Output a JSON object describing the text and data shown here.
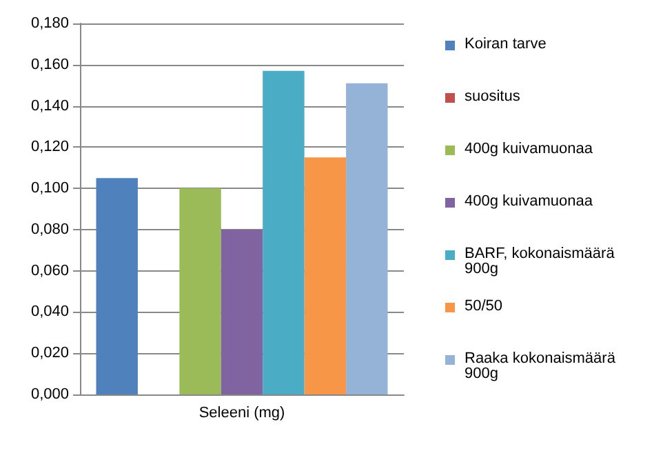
{
  "chart_data": {
    "type": "bar",
    "categories": [
      "Seleeni (mg)"
    ],
    "series": [
      {
        "name": "Koiran tarve",
        "color": "#4f81bd",
        "values": [
          0.105
        ]
      },
      {
        "name": "suositus",
        "color": "#c0504d",
        "values": [
          0
        ]
      },
      {
        "name": "400g kuivamuonaa",
        "color": "#9bbb59",
        "values": [
          0.1
        ]
      },
      {
        "name": "400g kuivamuonaa",
        "color": "#8064a2",
        "values": [
          0.08
        ]
      },
      {
        "name": "BARF, kokonaismäärä 900g",
        "color": "#4bacc6",
        "values": [
          0.157
        ]
      },
      {
        "name": "50/50",
        "color": "#f79646",
        "values": [
          0.115
        ]
      },
      {
        "name": "Raaka kokonaismäärä 900g",
        "color": "#95b3d7",
        "values": [
          0.151
        ]
      }
    ],
    "ylim": [
      0,
      0.18
    ],
    "yticks": [
      {
        "value": 0,
        "label": "0,000"
      },
      {
        "value": 0.02,
        "label": "0,020"
      },
      {
        "value": 0.04,
        "label": "0,040"
      },
      {
        "value": 0.06,
        "label": "0,060"
      },
      {
        "value": 0.08,
        "label": "0,080"
      },
      {
        "value": 0.1,
        "label": "0,100"
      },
      {
        "value": 0.12,
        "label": "0,120"
      },
      {
        "value": 0.14,
        "label": "0,140"
      },
      {
        "value": 0.16,
        "label": "0,160"
      },
      {
        "value": 0.18,
        "label": "0,180"
      }
    ],
    "grid": true,
    "legend": "right"
  }
}
